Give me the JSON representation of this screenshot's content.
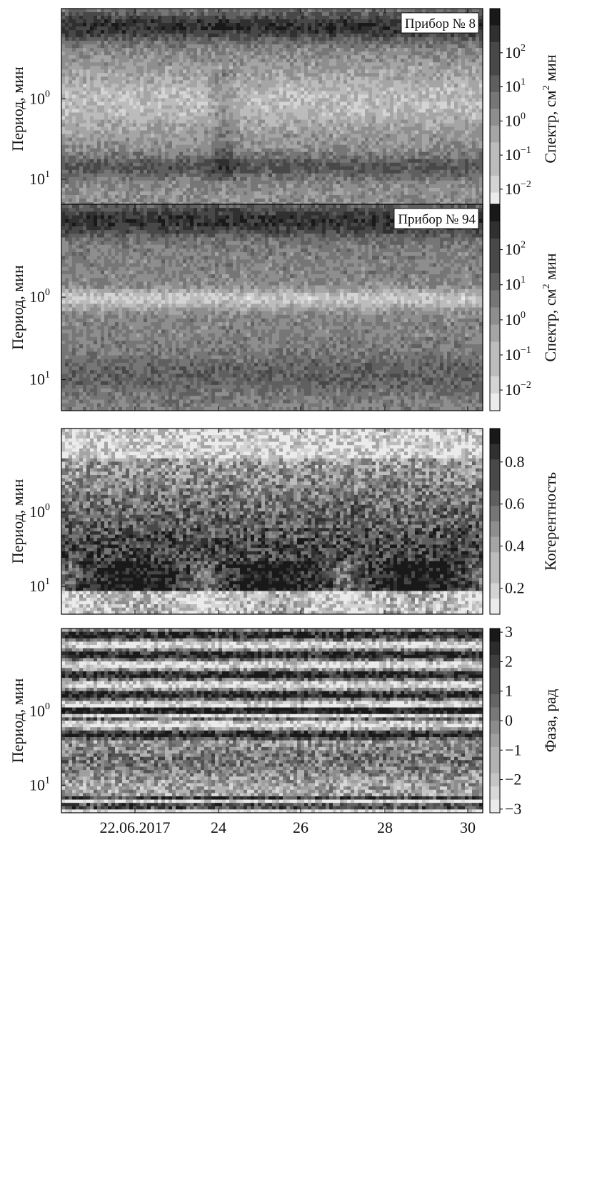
{
  "figure": {
    "x_axis": {
      "tick_labels": [
        "22.06.2017",
        "24",
        "26",
        "28",
        "30"
      ]
    },
    "panels": [
      {
        "id": "spectrum-8",
        "ylabel": "Период, мин",
        "y_ticks": [
          {
            "base": "10",
            "exp": "0"
          },
          {
            "base": "10",
            "exp": "1"
          }
        ],
        "annotation": "Прибор № 8",
        "colorbar": {
          "label_prefix": "Спектр, см",
          "label_sup": "2",
          "label_suffix": " мин",
          "ticks": [
            {
              "base": "10",
              "exp": "2"
            },
            {
              "base": "10",
              "exp": "1"
            },
            {
              "base": "10",
              "exp": "0"
            },
            {
              "base": "10",
              "exp": "−1"
            },
            {
              "base": "10",
              "exp": "−2"
            }
          ]
        }
      },
      {
        "id": "spectrum-94",
        "ylabel": "Период, мин",
        "y_ticks": [
          {
            "base": "10",
            "exp": "0"
          },
          {
            "base": "10",
            "exp": "1"
          }
        ],
        "annotation": "Прибор № 94",
        "colorbar": {
          "label_prefix": "Спектр, см",
          "label_sup": "2",
          "label_suffix": " мин",
          "ticks": [
            {
              "base": "10",
              "exp": "2"
            },
            {
              "base": "10",
              "exp": "1"
            },
            {
              "base": "10",
              "exp": "0"
            },
            {
              "base": "10",
              "exp": "−1"
            },
            {
              "base": "10",
              "exp": "−2"
            }
          ]
        }
      },
      {
        "id": "coherence",
        "ylabel": "Период, мин",
        "y_ticks": [
          {
            "base": "10",
            "exp": "0"
          },
          {
            "base": "10",
            "exp": "1"
          }
        ],
        "annotation": "",
        "colorbar": {
          "label_prefix": "Когерентность",
          "label_sup": "",
          "label_suffix": "",
          "ticks": [
            {
              "base": "0.8",
              "exp": ""
            },
            {
              "base": "0.6",
              "exp": ""
            },
            {
              "base": "0.4",
              "exp": ""
            },
            {
              "base": "0.2",
              "exp": ""
            }
          ]
        }
      },
      {
        "id": "phase",
        "ylabel": "Период, мин",
        "y_ticks": [
          {
            "base": "10",
            "exp": "0"
          },
          {
            "base": "10",
            "exp": "1"
          }
        ],
        "annotation": "",
        "colorbar": {
          "label_prefix": "Фаза, рад",
          "label_sup": "",
          "label_suffix": "",
          "ticks": [
            {
              "base": "3",
              "exp": ""
            },
            {
              "base": "2",
              "exp": ""
            },
            {
              "base": "1",
              "exp": ""
            },
            {
              "base": "0",
              "exp": ""
            },
            {
              "base": "−1",
              "exp": ""
            },
            {
              "base": "−2",
              "exp": ""
            },
            {
              "base": "−3",
              "exp": ""
            }
          ]
        }
      }
    ]
  },
  "chart_data": [
    {
      "type": "heatmap",
      "title": "",
      "annotation": "Прибор № 8",
      "xlabel": "",
      "ylabel": "Период, мин",
      "x_ticks": [
        "22.06.2017",
        "24",
        "26",
        "28",
        "30"
      ],
      "y_scale": "log",
      "y_axis_inverted": true,
      "y_ticks": [
        "10^0",
        "10^1"
      ],
      "colorbar_label": "Спектр, см² мин",
      "colorbar_scale": "log",
      "colorbar_ticks": [
        "10^2",
        "10^1",
        "10^0",
        "10^-1",
        "10^-2"
      ],
      "colormap": "grayscale, dark = high"
    },
    {
      "type": "heatmap",
      "title": "",
      "annotation": "Прибор № 94",
      "xlabel": "",
      "ylabel": "Период, мин",
      "x_ticks": [
        "22.06.2017",
        "24",
        "26",
        "28",
        "30"
      ],
      "y_scale": "log",
      "y_axis_inverted": true,
      "y_ticks": [
        "10^0",
        "10^1"
      ],
      "colorbar_label": "Спектр, см² мин",
      "colorbar_scale": "log",
      "colorbar_ticks": [
        "10^2",
        "10^1",
        "10^0",
        "10^-1",
        "10^-2"
      ],
      "colormap": "grayscale, dark = high"
    },
    {
      "type": "heatmap",
      "title": "",
      "xlabel": "",
      "ylabel": "Период, мин",
      "x_ticks": [
        "22.06.2017",
        "24",
        "26",
        "28",
        "30"
      ],
      "y_scale": "log",
      "y_axis_inverted": true,
      "y_ticks": [
        "10^0",
        "10^1"
      ],
      "colorbar_label": "Когерентность",
      "colorbar_ticks": [
        0.8,
        0.6,
        0.4,
        0.2
      ],
      "colormap": "grayscale, dark = high"
    },
    {
      "type": "heatmap",
      "title": "",
      "xlabel": "",
      "ylabel": "Период, мин",
      "x_ticks": [
        "22.06.2017",
        "24",
        "26",
        "28",
        "30"
      ],
      "y_scale": "log",
      "y_axis_inverted": true,
      "y_ticks": [
        "10^0",
        "10^1"
      ],
      "colorbar_label": "Фаза, рад",
      "colorbar_ticks": [
        3,
        2,
        1,
        0,
        -1,
        -2,
        -3
      ],
      "colormap": "grayscale, dark = high"
    }
  ]
}
